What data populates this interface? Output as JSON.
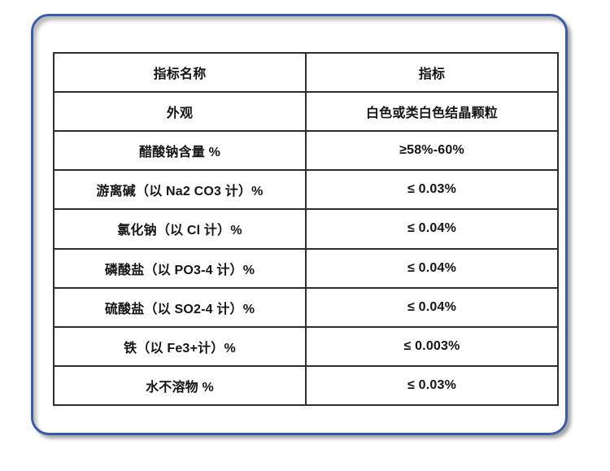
{
  "colors": {
    "card_border": "#3a5ca8",
    "table_border": "#2e2e2e",
    "text": "#141414",
    "background": "#ffffff"
  },
  "table": {
    "columns": [
      "指标名称",
      "指标"
    ],
    "rows": [
      {
        "name": "外观",
        "value": "白色或类白色结晶颗粒"
      },
      {
        "name": "醋酸钠含量 %",
        "value": "≥58%-60%"
      },
      {
        "name": "游离碱（以 Na2 CO3 计）%",
        "value": "≤ 0.03%"
      },
      {
        "name": "氯化钠（以 Cl 计）%",
        "value": "≤ 0.04%"
      },
      {
        "name": "磷酸盐（以 PO3-4 计）%",
        "value": "≤ 0.04%"
      },
      {
        "name": "硫酸盐（以 SO2-4 计）%",
        "value": "≤ 0.04%"
      },
      {
        "name": "铁（以 Fe3+计）%",
        "value": "≤ 0.003%"
      },
      {
        "name": "水不溶物 %",
        "value": "≤ 0.03%"
      }
    ]
  }
}
